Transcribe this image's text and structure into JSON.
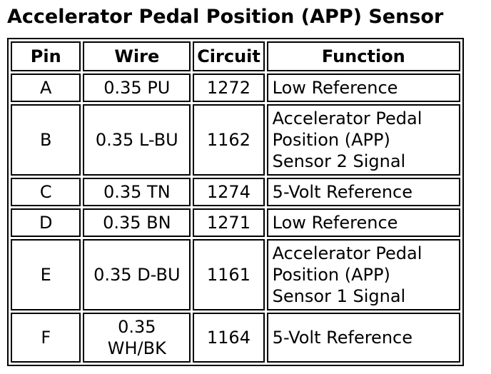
{
  "title": "Accelerator Pedal Position (APP) Sensor",
  "colors": {
    "background": "#ffffff",
    "border": "#000000",
    "text": "#000000"
  },
  "table": {
    "headers": {
      "pin": "Pin",
      "wire": "Wire",
      "circuit": "Circuit",
      "function": "Function"
    },
    "rows": [
      {
        "pin": "A",
        "wire": "0.35 PU",
        "circuit": "1272",
        "function": "Low Reference"
      },
      {
        "pin": "B",
        "wire": "0.35 L-BU",
        "circuit": "1162",
        "function": "Accelerator Pedal Position (APP) Sensor 2 Signal"
      },
      {
        "pin": "C",
        "wire": "0.35 TN",
        "circuit": "1274",
        "function": "5-Volt Reference"
      },
      {
        "pin": "D",
        "wire": "0.35 BN",
        "circuit": "1271",
        "function": "Low Reference"
      },
      {
        "pin": "E",
        "wire": "0.35 D-BU",
        "circuit": "1161",
        "function": "Accelerator Pedal Position (APP) Sensor 1 Signal"
      },
      {
        "pin": "F",
        "wire": "0.35 WH/BK",
        "circuit": "1164",
        "function": "5-Volt Reference"
      }
    ]
  }
}
